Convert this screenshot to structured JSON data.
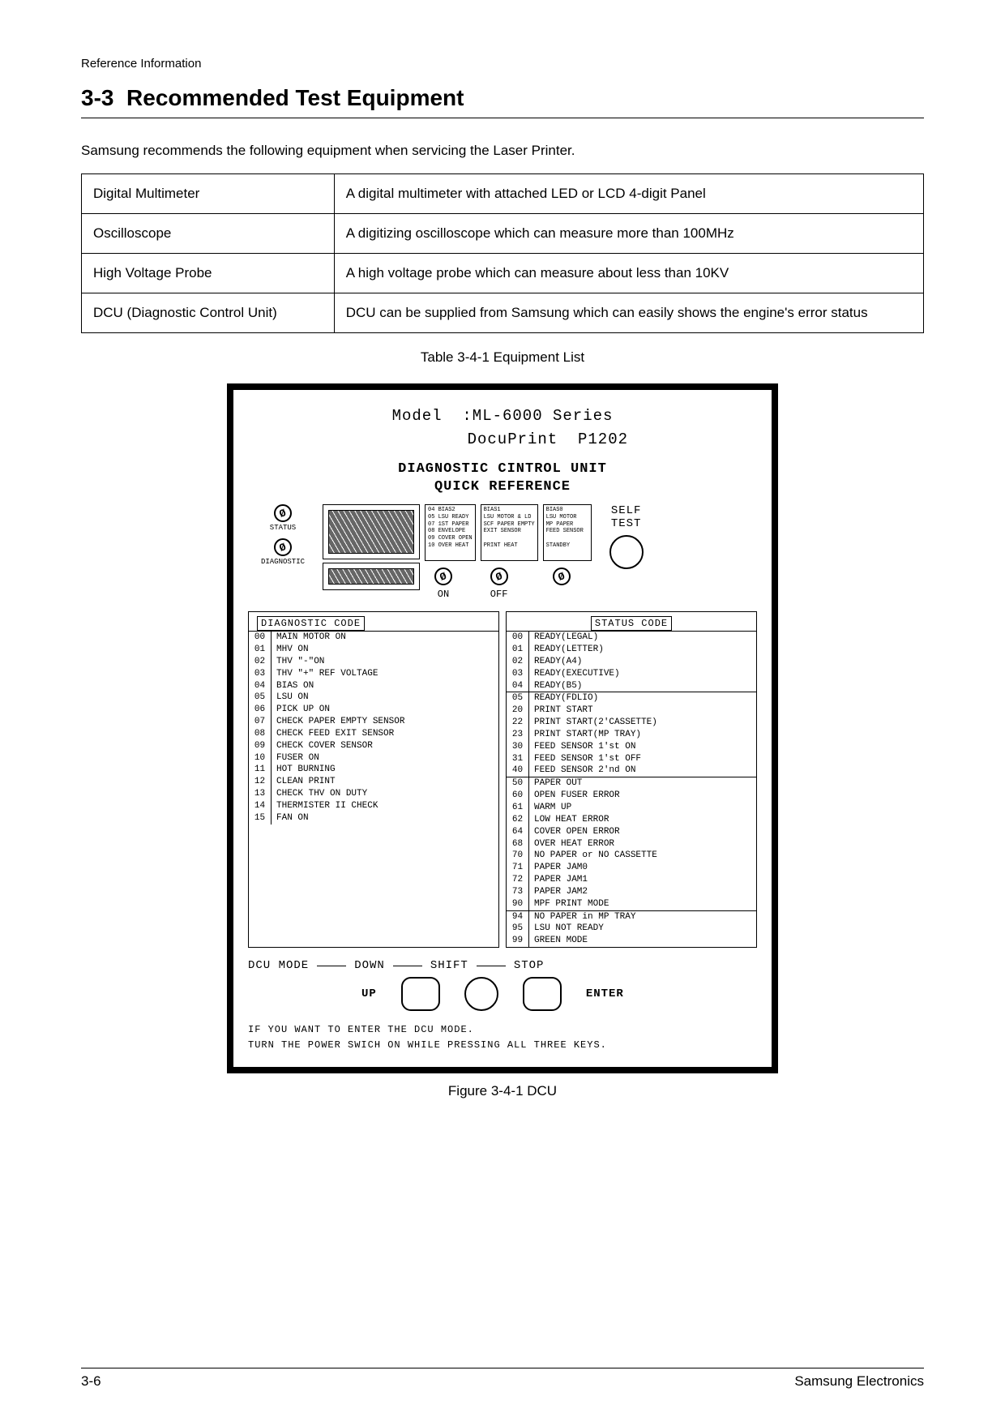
{
  "header": {
    "ref": "Reference Information"
  },
  "section": {
    "number": "3-3",
    "title": "Recommended Test Equipment"
  },
  "intro": "Samsung recommends the following equipment when servicing the Laser Printer.",
  "equipment": {
    "rows": [
      {
        "name": "Digital Multimeter",
        "desc": "A digital multimeter with attached LED or LCD 4-digit Panel"
      },
      {
        "name": "Oscilloscope",
        "desc": "A digitizing oscilloscope which can measure more than 100MHz"
      },
      {
        "name": "High Voltage Probe",
        "desc": "A high voltage probe which can measure about less than 10KV"
      },
      {
        "name": "DCU (Diagnostic Control Unit)",
        "desc": "DCU can be supplied from Samsung which can easily shows the engine's error status"
      }
    ],
    "caption": "Table 3-4-1 Equipment List"
  },
  "dcu": {
    "model_line1": "Model  :ML-6000 Series",
    "model_line2": "         DocuPrint  P1202",
    "head1": "DIAGNOSTIC CINTROL UNIT",
    "head2": "QUICK REFERENCE",
    "status_label": "STATUS",
    "diag_label": "DIAGNOSTIC",
    "self": "SELF",
    "test": "TEST",
    "on": "ON",
    "off": "OFF",
    "legend1": [
      "04  BIAS2",
      "05  LSU READY",
      "07  1ST PAPER",
      "08  ENVELOPE",
      "09  COVER OPEN",
      "10  OVER HEAT"
    ],
    "legend2": [
      "BIAS1",
      "LSU MOTOR & LD",
      "SCF PAPER EMPTY",
      "EXIT SENSOR",
      "",
      "PRINT HEAT"
    ],
    "legend3": [
      "BIAS0",
      "LSU MOTOR",
      "MP PAPER",
      "FEED SENSOR",
      "",
      "STANDBY"
    ],
    "diag_title": "DIAGNOSTIC CODE",
    "status_title": "STATUS CODE",
    "diag_codes": [
      [
        "00",
        "MAIN MOTOR  ON"
      ],
      [
        "01",
        "MHV ON"
      ],
      [
        "02",
        "THV \"-\"ON"
      ],
      [
        "03",
        "THV \"+\" REF VOLTAGE"
      ],
      [
        "04",
        "BIAS ON"
      ],
      [
        "05",
        "LSU ON"
      ],
      [
        "06",
        "PICK UP ON"
      ],
      [
        "07",
        "CHECK PAPER EMPTY SENSOR"
      ],
      [
        "08",
        "CHECK FEED EXIT SENSOR"
      ],
      [
        "09",
        "CHECK COVER SENSOR"
      ],
      [
        "10",
        "FUSER ON"
      ],
      [
        "11",
        "HOT BURNING"
      ],
      [
        "12",
        "CLEAN PRINT"
      ],
      [
        "13",
        "CHECK THV ON DUTY"
      ],
      [
        "14",
        "THERMISTER II CHECK"
      ],
      [
        "15",
        "FAN ON"
      ]
    ],
    "status_codes": [
      [
        "00",
        "READY(LEGAL)"
      ],
      [
        "01",
        "READY(LETTER)"
      ],
      [
        "02",
        "READY(A4)"
      ],
      [
        "03",
        "READY(EXECUTIVE)"
      ],
      [
        "04",
        "READY(B5)"
      ],
      [
        "05",
        "READY(FDLIO)",
        "sep"
      ],
      [
        "20",
        "PRINT START"
      ],
      [
        "22",
        "PRINT START(2'CASSETTE)"
      ],
      [
        "23",
        "PRINT START(MP TRAY)"
      ],
      [
        "30",
        "FEED SENSOR 1'st ON"
      ],
      [
        "31",
        "FEED SENSOR 1'st OFF"
      ],
      [
        "40",
        "FEED SENSOR 2'nd ON"
      ],
      [
        "50",
        "PAPER OUT",
        "sep"
      ],
      [
        "60",
        "OPEN FUSER ERROR"
      ],
      [
        "61",
        "WARM UP"
      ],
      [
        "62",
        "LOW HEAT ERROR"
      ],
      [
        "64",
        "COVER OPEN ERROR"
      ],
      [
        "68",
        "OVER HEAT ERROR"
      ],
      [
        "70",
        "NO PAPER or NO CASSETTE"
      ],
      [
        "71",
        "PAPER JAM0"
      ],
      [
        "72",
        "PAPER JAM1"
      ],
      [
        "73",
        "PAPER JAM2"
      ],
      [
        "90",
        "MPF PRINT MODE"
      ],
      [
        "94",
        "NO PAPER in MP TRAY",
        "sep"
      ],
      [
        "95",
        "LSU NOT READY"
      ],
      [
        "99",
        "GREEN MODE"
      ]
    ],
    "bot": {
      "dcu_mode": "DCU MODE",
      "down": "DOWN",
      "shift": "SHIFT",
      "stop": "STOP",
      "up": "UP",
      "enter": "ENTER",
      "txt1": "IF YOU WANT TO ENTER THE DCU MODE.",
      "txt2": "TURN THE POWER SWICH ON WHILE PRESSING ALL THREE KEYS."
    },
    "caption": "Figure 3-4-1 DCU"
  },
  "footer": {
    "left": "3-6",
    "right": "Samsung Electronics"
  }
}
